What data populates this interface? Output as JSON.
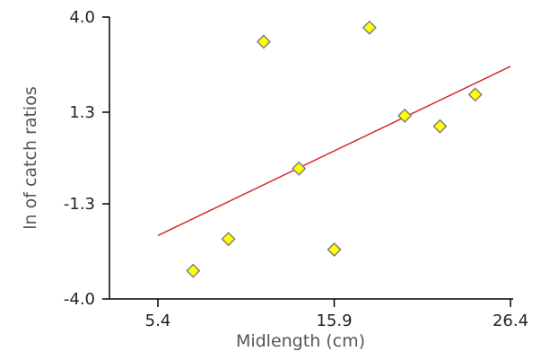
{
  "chart_data": {
    "type": "scatter",
    "title": "",
    "xlabel": "Midlength (cm)",
    "ylabel": "ln of catch ratios",
    "xlim": [
      5.4,
      26.4
    ],
    "ylim": [
      -4.0,
      4.0
    ],
    "x_ticks": [
      {
        "value": 5.4,
        "label": "5.4"
      },
      {
        "value": 15.9,
        "label": "15.9"
      },
      {
        "value": 26.4,
        "label": "26.4"
      }
    ],
    "y_ticks": [
      {
        "value": 4.0,
        "label": "4.0"
      },
      {
        "value": 1.3,
        "label": "1.3"
      },
      {
        "value": -1.3,
        "label": "-1.3"
      },
      {
        "value": -4.0,
        "label": "-4.0"
      }
    ],
    "grid": false,
    "legend": "none",
    "points": [
      {
        "x": 7.5,
        "y": -3.2
      },
      {
        "x": 9.6,
        "y": -2.3
      },
      {
        "x": 11.7,
        "y": 3.3
      },
      {
        "x": 13.8,
        "y": -0.3
      },
      {
        "x": 15.9,
        "y": -2.6
      },
      {
        "x": 18.0,
        "y": 3.7
      },
      {
        "x": 20.1,
        "y": 1.2
      },
      {
        "x": 22.2,
        "y": 0.9
      },
      {
        "x": 24.3,
        "y": 1.8
      }
    ],
    "trendline": {
      "x": [
        5.4,
        26.4
      ],
      "y": [
        -2.2,
        2.6
      ]
    },
    "colors": {
      "point_fill": "#ffff00",
      "point_stroke": "#808080",
      "trendline": "#d62728",
      "axis": "#000000"
    }
  }
}
